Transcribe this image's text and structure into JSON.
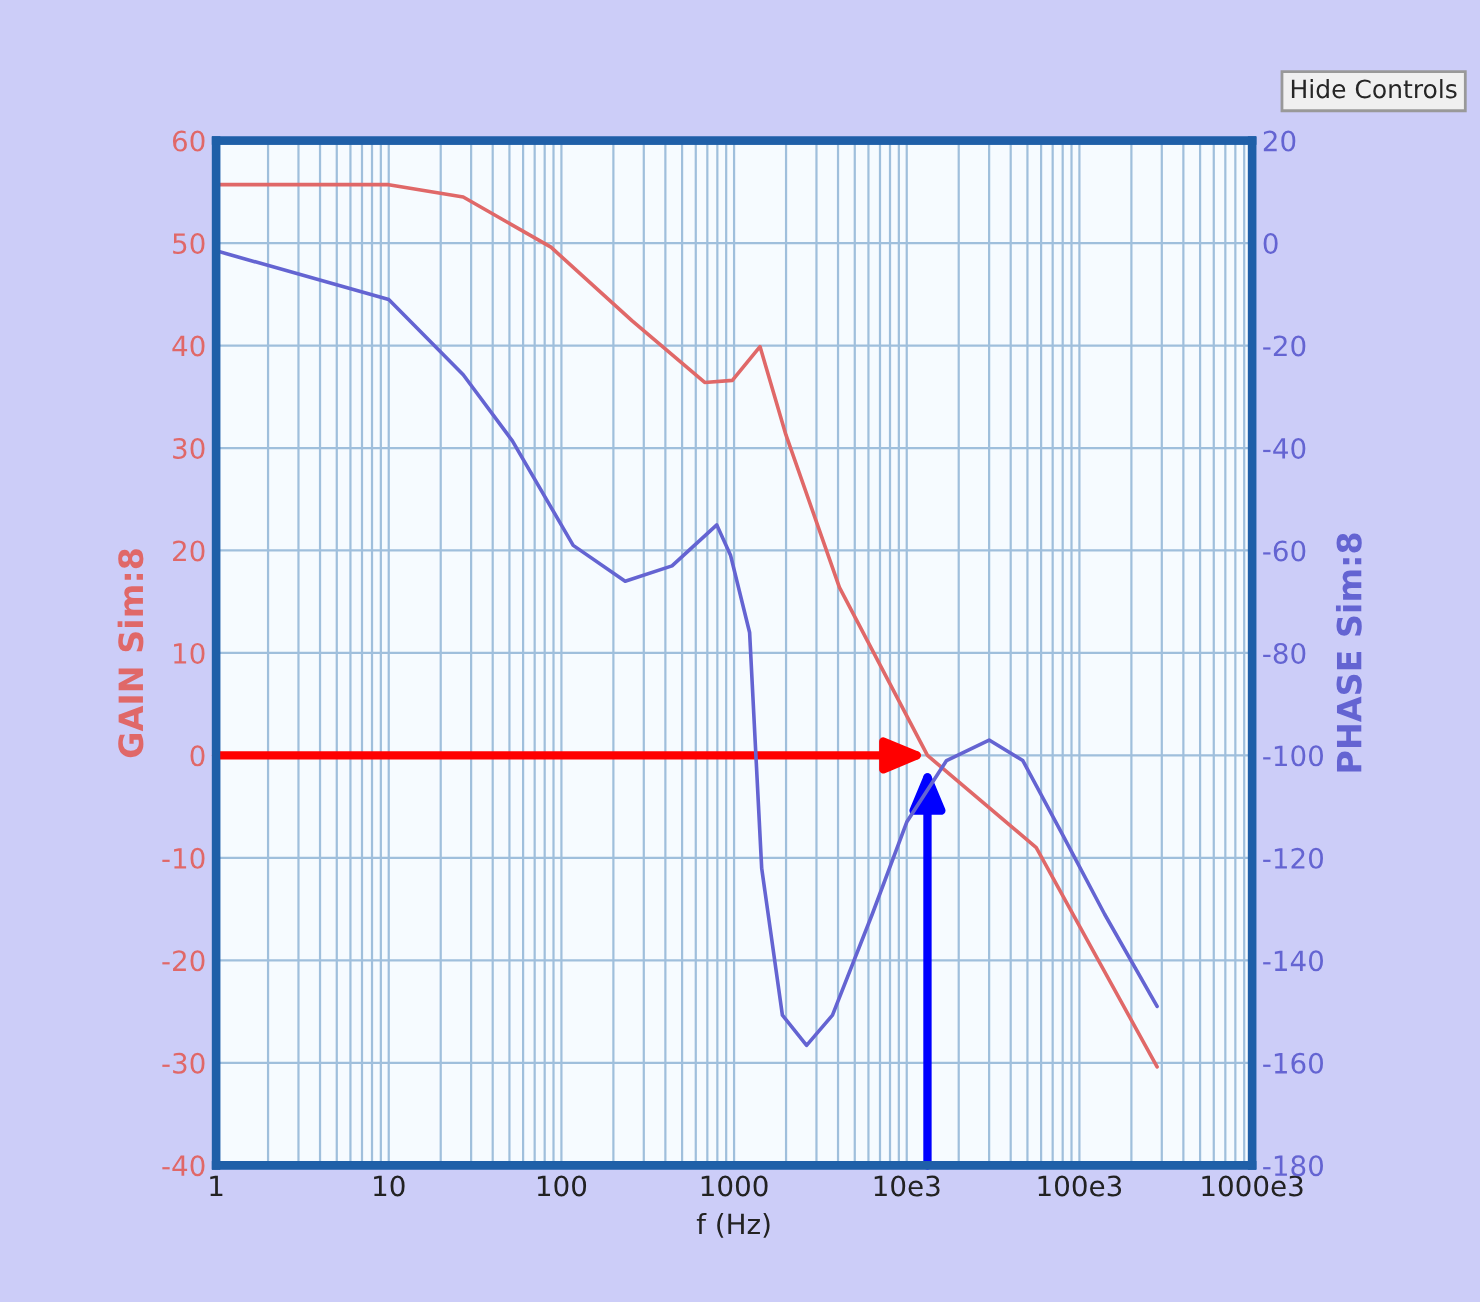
{
  "chart_data": {
    "type": "line",
    "xlabel": "f (Hz)",
    "ylabel": "GAIN Sim:8",
    "y2label": "PHASE Sim:8",
    "annotations": [
      "Hide Controls"
    ],
    "log": "x",
    "grid": true,
    "xlim": [
      1,
      1000000
    ],
    "xticks": [
      1,
      10,
      100,
      1000,
      {
        "value": 10000,
        "label": "10e3"
      },
      {
        "value": 100000,
        "label": "100e3"
      },
      {
        "value": 1000000,
        "label": "1000e3"
      }
    ],
    "ylim": [
      -40,
      60
    ],
    "yticks": [
      -40,
      -30,
      -20,
      -10,
      0,
      10,
      20,
      30,
      40,
      50,
      60
    ],
    "y2lim": [
      -180,
      20
    ],
    "y2ticks": [
      -180,
      -160,
      -140,
      -120,
      -100,
      -80,
      -60,
      -40,
      -20,
      0,
      20
    ],
    "series": [
      {
        "color": "#e06868",
        "x": [
          1,
          10,
          27,
          87,
          257,
          676,
          977,
          1413,
          1995,
          4074,
          13183,
          56234,
          281838
        ],
        "values": [
          55.7,
          55.7,
          54.5,
          49.6,
          42.4,
          36.4,
          36.6,
          39.9,
          31.3,
          16.4,
          0,
          -9,
          -30.4
        ]
      },
      {
        "color": "#6464d2",
        "axis": "y2",
        "x": [
          1,
          10,
          27,
          52,
          117,
          234,
          437,
          794,
          955,
          1230,
          1445,
          1905,
          2630,
          3715,
          6310,
          10000,
          17000,
          30000,
          47000,
          80000,
          140000,
          281838
        ],
        "values": [
          -1.5,
          -11,
          -25.7,
          -38.6,
          -59,
          -66,
          -63,
          -55,
          -61,
          -76,
          -122,
          -150.7,
          -156.6,
          -150.7,
          -131,
          -113,
          -101,
          -97,
          -101,
          -115.5,
          -131,
          -149
        ]
      }
    ]
  }
}
